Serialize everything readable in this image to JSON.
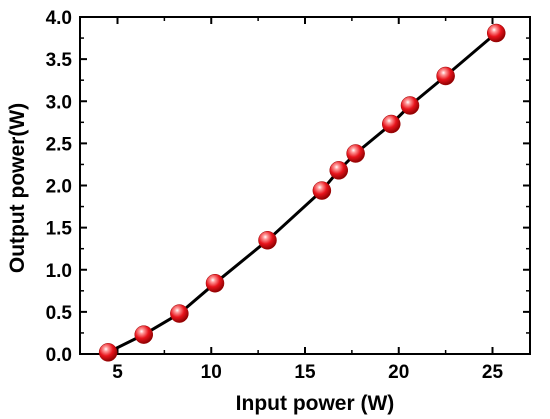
{
  "chart_data": {
    "type": "line",
    "xlabel": "Input power (W)",
    "ylabel": "Output power(W)",
    "xlim": [
      3,
      27
    ],
    "ylim": [
      0,
      4.0
    ],
    "x_ticks": [
      5,
      10,
      15,
      20,
      25
    ],
    "y_ticks": [
      0.0,
      0.5,
      1.0,
      1.5,
      2.0,
      2.5,
      3.0,
      3.5,
      4.0
    ],
    "x_tick_labels": [
      "5",
      "10",
      "15",
      "20",
      "25"
    ],
    "y_tick_labels": [
      "0.0",
      "0.5",
      "1.0",
      "1.5",
      "2.0",
      "2.5",
      "3.0",
      "3.5",
      "4.0"
    ],
    "grid": false,
    "marker": "sphere",
    "marker_color": "#e8141c",
    "line_color": "#000000",
    "series": [
      {
        "x": [
          4.5,
          6.4,
          8.3,
          10.2,
          13.0,
          15.9,
          16.8,
          17.7,
          19.6,
          20.6,
          22.5,
          25.2
        ],
        "y": [
          0.02,
          0.23,
          0.48,
          0.84,
          1.35,
          1.94,
          2.18,
          2.38,
          2.73,
          2.95,
          3.3,
          3.81
        ]
      }
    ]
  }
}
